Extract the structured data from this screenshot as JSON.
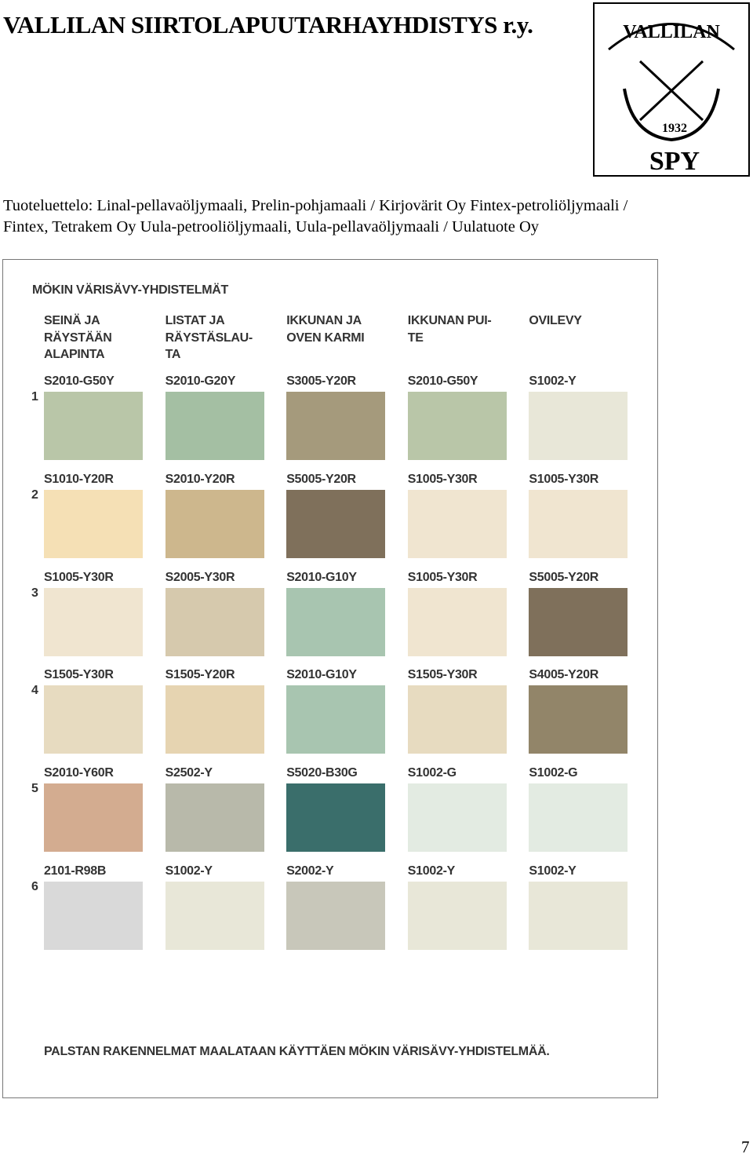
{
  "header": {
    "title": "VALLILAN SIIRTOLAPUUTARHAYHDISTYS r.y.",
    "logo": {
      "name": "VALLILAN",
      "year": "1932",
      "initials": "SPY"
    }
  },
  "products": {
    "lines": [
      "Tuoteluettelo: Linal-pellavaöljymaali, Prelin-pohjamaali / Kirjovärit Oy Fintex-petroliöljymaali /",
      "Fintex, Tetrakem Oy Uula-petrooliöljymaali, Uula-pellavaöljymaali / Uulatuote Oy"
    ]
  },
  "chart": {
    "title": "MÖKIN VÄRISÄVY-YHDISTELMÄT",
    "columns": [
      [
        "SEINÄ JA",
        "RÄYSTÄÄN",
        "ALAPINTA"
      ],
      [
        "LISTAT JA",
        "RÄYSTÄSLAU-",
        "TA"
      ],
      [
        "IKKUNAN JA",
        "OVEN KARMI"
      ],
      [
        "IKKUNAN PUI-",
        "TE"
      ],
      [
        "OVILEVY"
      ]
    ],
    "rows": [
      {
        "number": "1",
        "swatches": [
          {
            "code": "S2010-G50Y",
            "color": "#b9c6a8"
          },
          {
            "code": "S2010-G20Y",
            "color": "#a4bfa3"
          },
          {
            "code": "S3005-Y20R",
            "color": "#a59a7c"
          },
          {
            "code": "S2010-G50Y",
            "color": "#b9c6a8"
          },
          {
            "code": "S1002-Y",
            "color": "#e8e7d8"
          }
        ]
      },
      {
        "number": "2",
        "swatches": [
          {
            "code": "S1010-Y20R",
            "color": "#f5e0b5"
          },
          {
            "code": "S2010-Y20R",
            "color": "#cdb78d"
          },
          {
            "code": "S5005-Y20R",
            "color": "#7f705b"
          },
          {
            "code": "S1005-Y30R",
            "color": "#f0e5d0"
          },
          {
            "code": "S1005-Y30R",
            "color": "#f0e5d0"
          }
        ]
      },
      {
        "number": "3",
        "swatches": [
          {
            "code": "S1005-Y30R",
            "color": "#f0e5d0"
          },
          {
            "code": "S2005-Y30R",
            "color": "#d6c9ad"
          },
          {
            "code": "S2010-G10Y",
            "color": "#a8c5b0"
          },
          {
            "code": "S1005-Y30R",
            "color": "#f0e5d0"
          },
          {
            "code": "S5005-Y20R",
            "color": "#7f705b"
          }
        ]
      },
      {
        "number": "4",
        "swatches": [
          {
            "code": "S1505-Y30R",
            "color": "#e7dbc0"
          },
          {
            "code": "S1505-Y20R",
            "color": "#e6d4b1"
          },
          {
            "code": "S2010-G10Y",
            "color": "#a8c5b0"
          },
          {
            "code": "S1505-Y30R",
            "color": "#e7dbc0"
          },
          {
            "code": "S4005-Y20R",
            "color": "#928569"
          }
        ]
      },
      {
        "number": "5",
        "swatches": [
          {
            "code": "S2010-Y60R",
            "color": "#d3ac90"
          },
          {
            "code": "S2502-Y",
            "color": "#b8b9aa"
          },
          {
            "code": "S5020-B30G",
            "color": "#3a6e6b"
          },
          {
            "code": "S1002-G",
            "color": "#e3ebe2"
          },
          {
            "code": "S1002-G",
            "color": "#e3ebe2"
          }
        ]
      },
      {
        "number": "6",
        "swatches": [
          {
            "code": "2101-R98B",
            "color": "#d9d9d9"
          },
          {
            "code": "S1002-Y",
            "color": "#e8e7d8"
          },
          {
            "code": "S2002-Y",
            "color": "#c8c7ba"
          },
          {
            "code": "S1002-Y",
            "color": "#e8e7d8"
          },
          {
            "code": "S1002-Y",
            "color": "#e8e7d8"
          }
        ]
      }
    ],
    "footer": "PALSTAN RAKENNELMAT MAALATAAN KÄYTTÄEN MÖKIN VÄRISÄVY-YHDISTELMÄÄ."
  },
  "page_number": "7"
}
